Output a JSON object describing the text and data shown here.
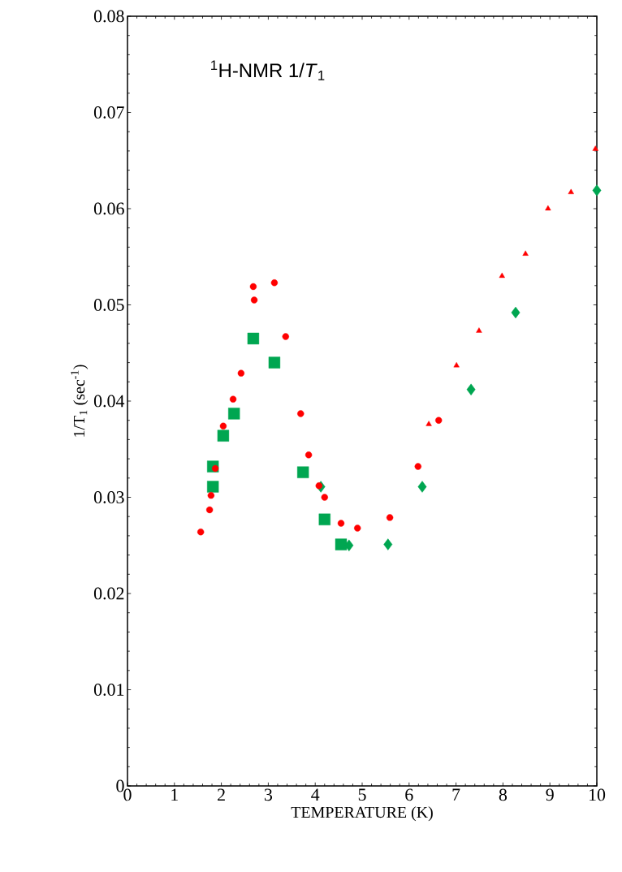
{
  "chart_data": {
    "type": "scatter",
    "title": "$^{1}$H-NMR 1/*T*$_{1}$",
    "xlabel": "TEMPERATURE (K)",
    "ylabel": "1/T$_{1}$ (sec$^{-1}$)",
    "xlim": [
      0,
      10
    ],
    "ylim": [
      0,
      0.08
    ],
    "xticks": [
      0,
      1,
      2,
      3,
      4,
      5,
      6,
      7,
      8,
      9,
      10
    ],
    "yticks": [
      0,
      0.01,
      0.02,
      0.03,
      0.04,
      0.05,
      0.06,
      0.07,
      0.08
    ],
    "grid": false,
    "series": [
      {
        "color": "#ff0000",
        "marker": "circle",
        "x": [
          1.56,
          1.75,
          1.78,
          1.87,
          2.04,
          2.25,
          2.42,
          2.7,
          2.68,
          3.13,
          3.37,
          3.69,
          3.86,
          4.08,
          4.2,
          4.55,
          4.9,
          5.59,
          6.19,
          6.63
        ],
        "values": [
          0.0264,
          0.0287,
          0.0302,
          0.033,
          0.0374,
          0.0402,
          0.0429,
          0.0505,
          0.0519,
          0.0523,
          0.0467,
          0.0387,
          0.0344,
          0.0312,
          0.03,
          0.0273,
          0.0268,
          0.0279,
          0.0332,
          0.038
        ]
      },
      {
        "color": "#ff0000",
        "marker": "triangle",
        "x": [
          6.42,
          7.01,
          7.49,
          7.98,
          8.48,
          8.96,
          9.45,
          9.97
        ],
        "values": [
          0.0376,
          0.0437,
          0.0473,
          0.053,
          0.0553,
          0.06,
          0.0617,
          0.0662
        ]
      },
      {
        "color": "#00a651",
        "marker": "square",
        "x": [
          1.82,
          1.82,
          2.04,
          2.27,
          2.68,
          3.13,
          3.74,
          4.2,
          4.55
        ],
        "values": [
          0.0311,
          0.0332,
          0.0364,
          0.0387,
          0.0465,
          0.044,
          0.0326,
          0.0277,
          0.0251
        ]
      },
      {
        "color": "#00a651",
        "marker": "diamond",
        "x": [
          4.12,
          4.72,
          5.55,
          6.28,
          7.32,
          8.27,
          10.0
        ],
        "values": [
          0.0311,
          0.025,
          0.0251,
          0.0311,
          0.0412,
          0.0492,
          0.0619
        ]
      }
    ]
  }
}
